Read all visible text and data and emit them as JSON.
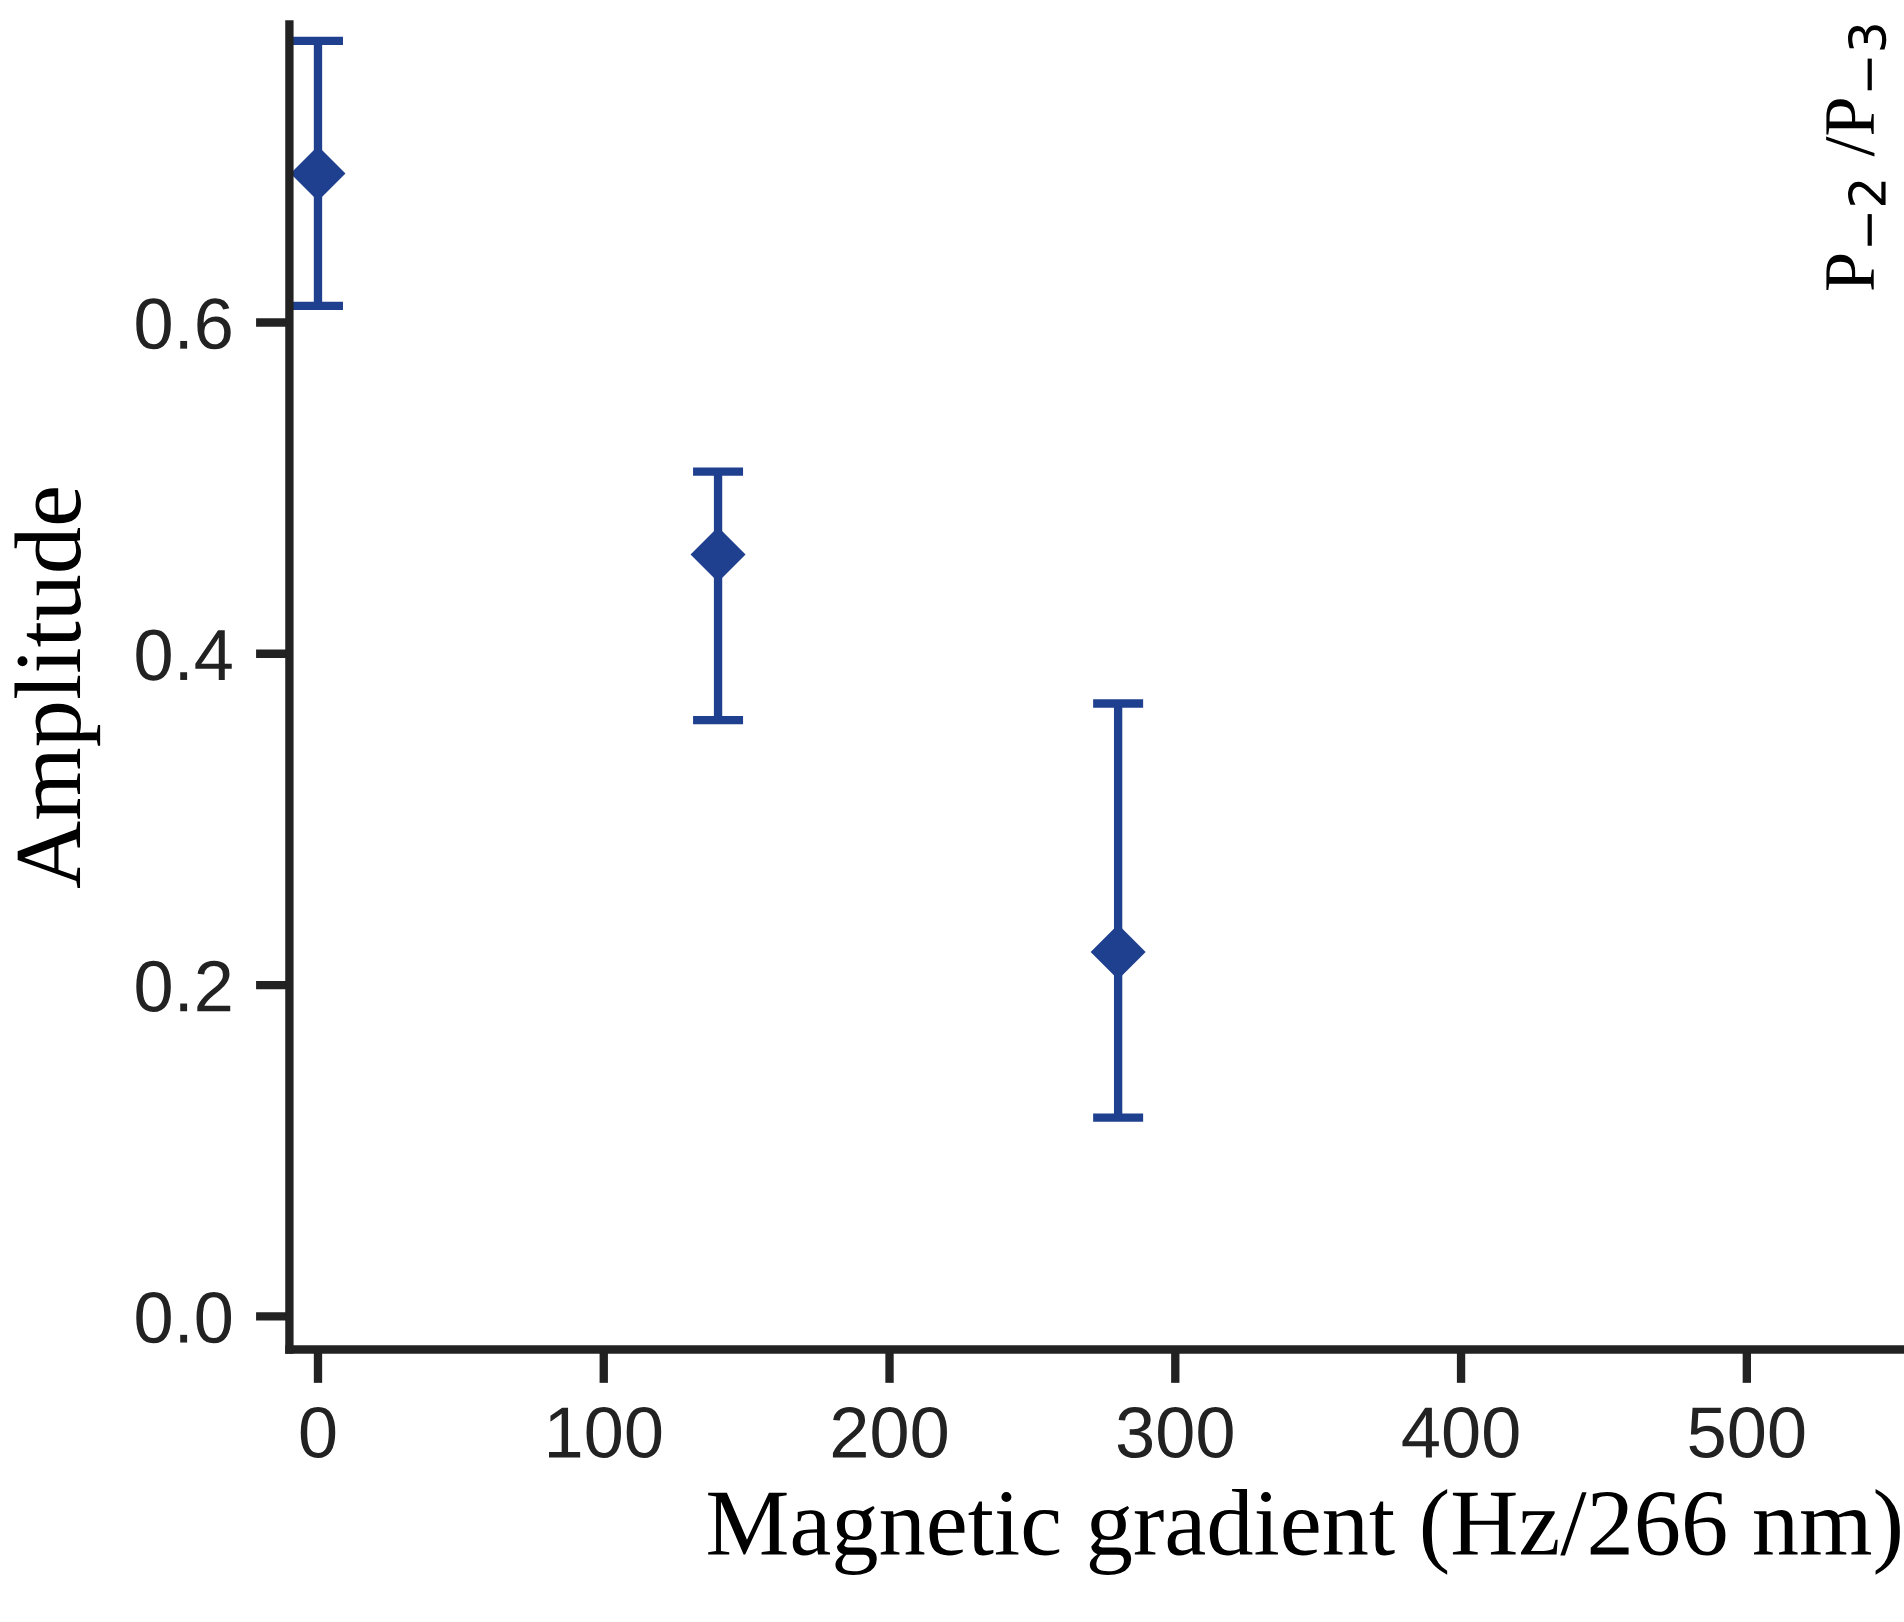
{
  "chart_data": {
    "type": "scatter",
    "xlabel": "Magnetic gradient (Hz/266 nm)",
    "ylabel": "Amplitude",
    "x": [
      0,
      140,
      280
    ],
    "series": [
      {
        "color": "#1f3f8f",
        "values": [
          0.69,
          0.46,
          0.22
        ],
        "errors": [
          [
            0.61,
            0.77
          ],
          [
            0.36,
            0.51
          ],
          [
            0.12,
            0.37
          ]
        ]
      }
    ],
    "marker": "diamond",
    "grid": false,
    "legend": false,
    "xlim": [
      -10,
      555
    ],
    "xticks": [
      0,
      100,
      200,
      300,
      400,
      500
    ],
    "ylim": [
      -0.02,
      0.78
    ],
    "yticks": [
      {
        "value": 0,
        "label": "0.0"
      },
      0.2,
      0.4,
      0.6
    ],
    "annotations": [
      "P$_{−2}$ /P$_{−3}$"
    ]
  }
}
